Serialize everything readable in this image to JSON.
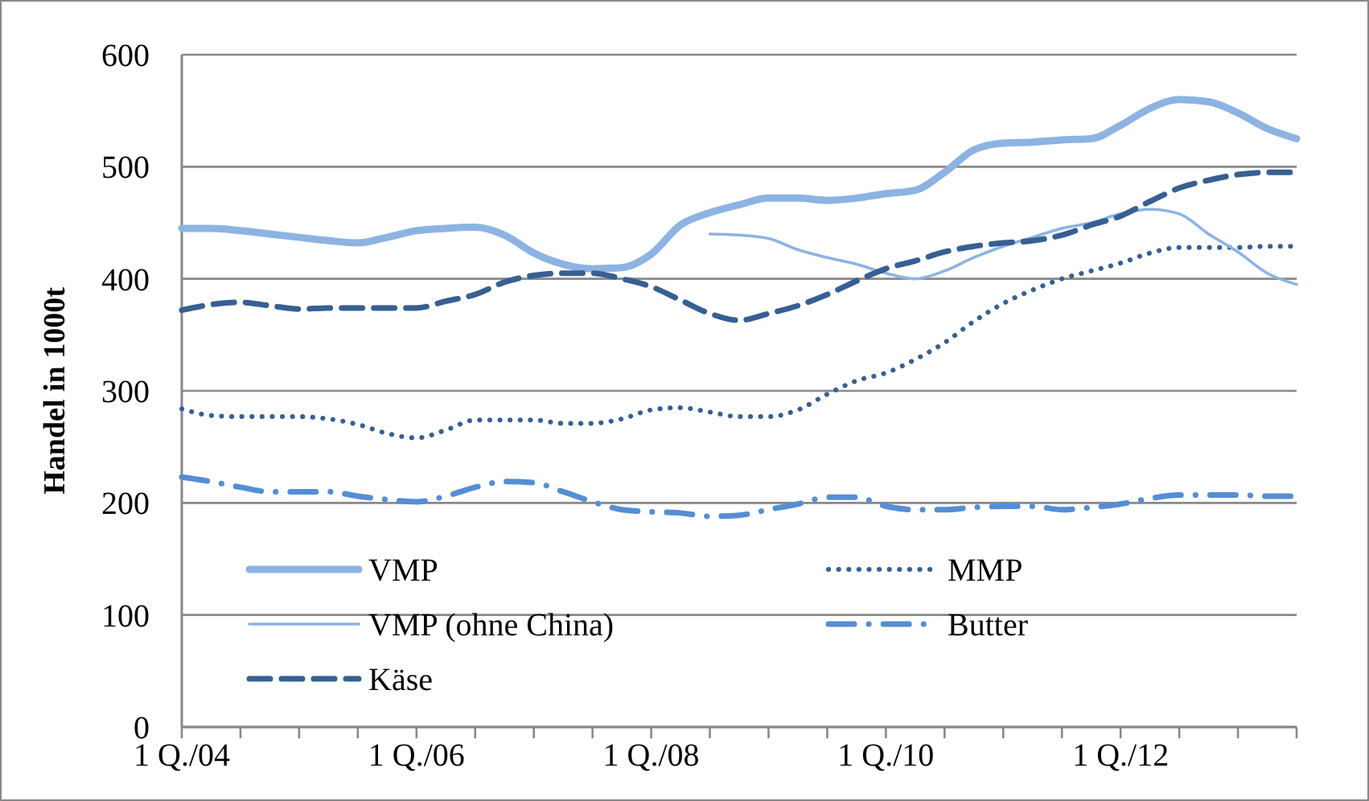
{
  "chart_data": {
    "type": "line",
    "ylabel": "Handel in 1000t",
    "categories": [
      "1 Q./04",
      null,
      null,
      null,
      null,
      null,
      null,
      null,
      "1 Q./06",
      null,
      null,
      null,
      null,
      null,
      null,
      null,
      "1 Q./08",
      null,
      null,
      null,
      null,
      null,
      null,
      null,
      "1 Q./10",
      null,
      null,
      null,
      null,
      null,
      null,
      null,
      "1 Q./12",
      null,
      null,
      null,
      null,
      null,
      null
    ],
    "series": [
      {
        "name": "VMP",
        "color": "#8db3e2",
        "line_style": "solid",
        "values": [
          445,
          445,
          443,
          440,
          437,
          434,
          432,
          437,
          443,
          445,
          446,
          439,
          423,
          413,
          409,
          410,
          422,
          448,
          459,
          466,
          472,
          472,
          470,
          472,
          476,
          479,
          495,
          515,
          521,
          522,
          524,
          525,
          537,
          552,
          560,
          558,
          548,
          534,
          525
        ]
      },
      {
        "name": "MMP",
        "color": "#376092",
        "line_style": "dotted",
        "values": [
          284,
          278,
          277,
          277,
          277,
          275,
          270,
          262,
          258,
          265,
          274,
          274,
          274,
          271,
          271,
          275,
          283,
          285,
          281,
          277,
          277,
          283,
          297,
          309,
          316,
          328,
          343,
          362,
          378,
          390,
          400,
          407,
          414,
          423,
          428,
          428,
          428,
          429,
          429
        ]
      },
      {
        "name": "VMP (ohne China)",
        "color": "#8db3e2",
        "line_style": "solid",
        "values": [
          null,
          null,
          null,
          null,
          null,
          null,
          null,
          null,
          null,
          null,
          null,
          null,
          null,
          null,
          null,
          null,
          null,
          null,
          440,
          439,
          436,
          426,
          419,
          413,
          405,
          400,
          407,
          419,
          429,
          437,
          445,
          450,
          458,
          462,
          458,
          440,
          424,
          405,
          395
        ]
      },
      {
        "name": "Butter",
        "color": "#558ed5",
        "line_style": "dashdot",
        "values": [
          223,
          219,
          214,
          210,
          210,
          210,
          206,
          203,
          201,
          206,
          214,
          219,
          218,
          210,
          201,
          194,
          192,
          191,
          188,
          189,
          194,
          199,
          205,
          205,
          197,
          194,
          194,
          196,
          197,
          197,
          194,
          196,
          199,
          204,
          207,
          207,
          207,
          206,
          206
        ]
      },
      {
        "name": "Käse",
        "color": "#376092",
        "line_style": "dashed",
        "values": [
          372,
          377,
          379,
          376,
          373,
          374,
          374,
          374,
          374,
          380,
          386,
          397,
          403,
          405,
          405,
          400,
          393,
          381,
          369,
          363,
          369,
          376,
          386,
          398,
          409,
          416,
          424,
          429,
          432,
          434,
          439,
          448,
          456,
          469,
          481,
          488,
          493,
          495,
          495
        ]
      }
    ],
    "ylim": [
      0,
      600
    ],
    "yticks": [
      0,
      100,
      200,
      300,
      400,
      500,
      600
    ],
    "grid": "y",
    "legend": "bottom"
  }
}
